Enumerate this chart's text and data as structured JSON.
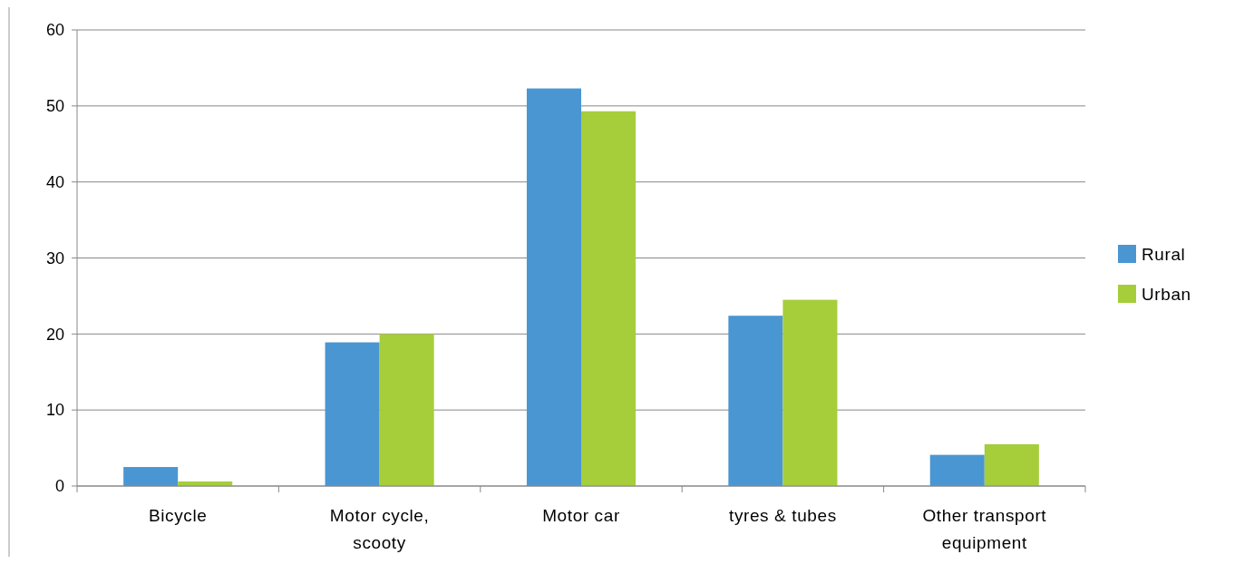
{
  "chart_data": {
    "type": "bar",
    "categories": [
      "Bicycle",
      "Motor cycle, scooty",
      "Motor car",
      "tyres & tubes",
      "Other transport equipment"
    ],
    "series": [
      {
        "name": "Rural",
        "color": "#4a96d2",
        "values": [
          2.5,
          18.9,
          52.3,
          22.4,
          4.1
        ]
      },
      {
        "name": "Urban",
        "color": "#a6cd3a",
        "values": [
          0.6,
          20.0,
          49.3,
          24.5,
          5.5
        ]
      }
    ],
    "ylim": [
      0,
      60
    ],
    "yticks": [
      0,
      10,
      20,
      30,
      40,
      50,
      60
    ],
    "grid": "y",
    "legend": "right"
  }
}
